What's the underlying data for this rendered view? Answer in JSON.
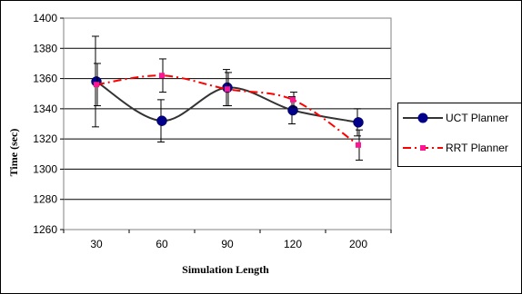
{
  "chart_data": {
    "type": "line",
    "title": "",
    "xlabel": "Simulation Length",
    "ylabel": "Time (sec)",
    "categories": [
      "30",
      "60",
      "90",
      "120",
      "200"
    ],
    "ylim": [
      1260,
      1400
    ],
    "yticks": [
      1260,
      1280,
      1300,
      1320,
      1340,
      1360,
      1380,
      1400
    ],
    "grid": true,
    "legend": "right",
    "series": [
      {
        "name": "UCT Planner",
        "color": "#333333",
        "marker": "circle",
        "marker_color": "#00008b",
        "line_style": "solid",
        "values": [
          1358,
          1332,
          1354,
          1339,
          1331
        ],
        "error": [
          30,
          14,
          12,
          9,
          9
        ]
      },
      {
        "name": "RRT Planner",
        "color": "#ff0000",
        "marker": "square",
        "marker_color": "#ff1493",
        "line_style": "dashed",
        "values": [
          1356,
          1362,
          1353,
          1346,
          1316
        ],
        "error": [
          14,
          11,
          11,
          5,
          10
        ]
      }
    ]
  }
}
